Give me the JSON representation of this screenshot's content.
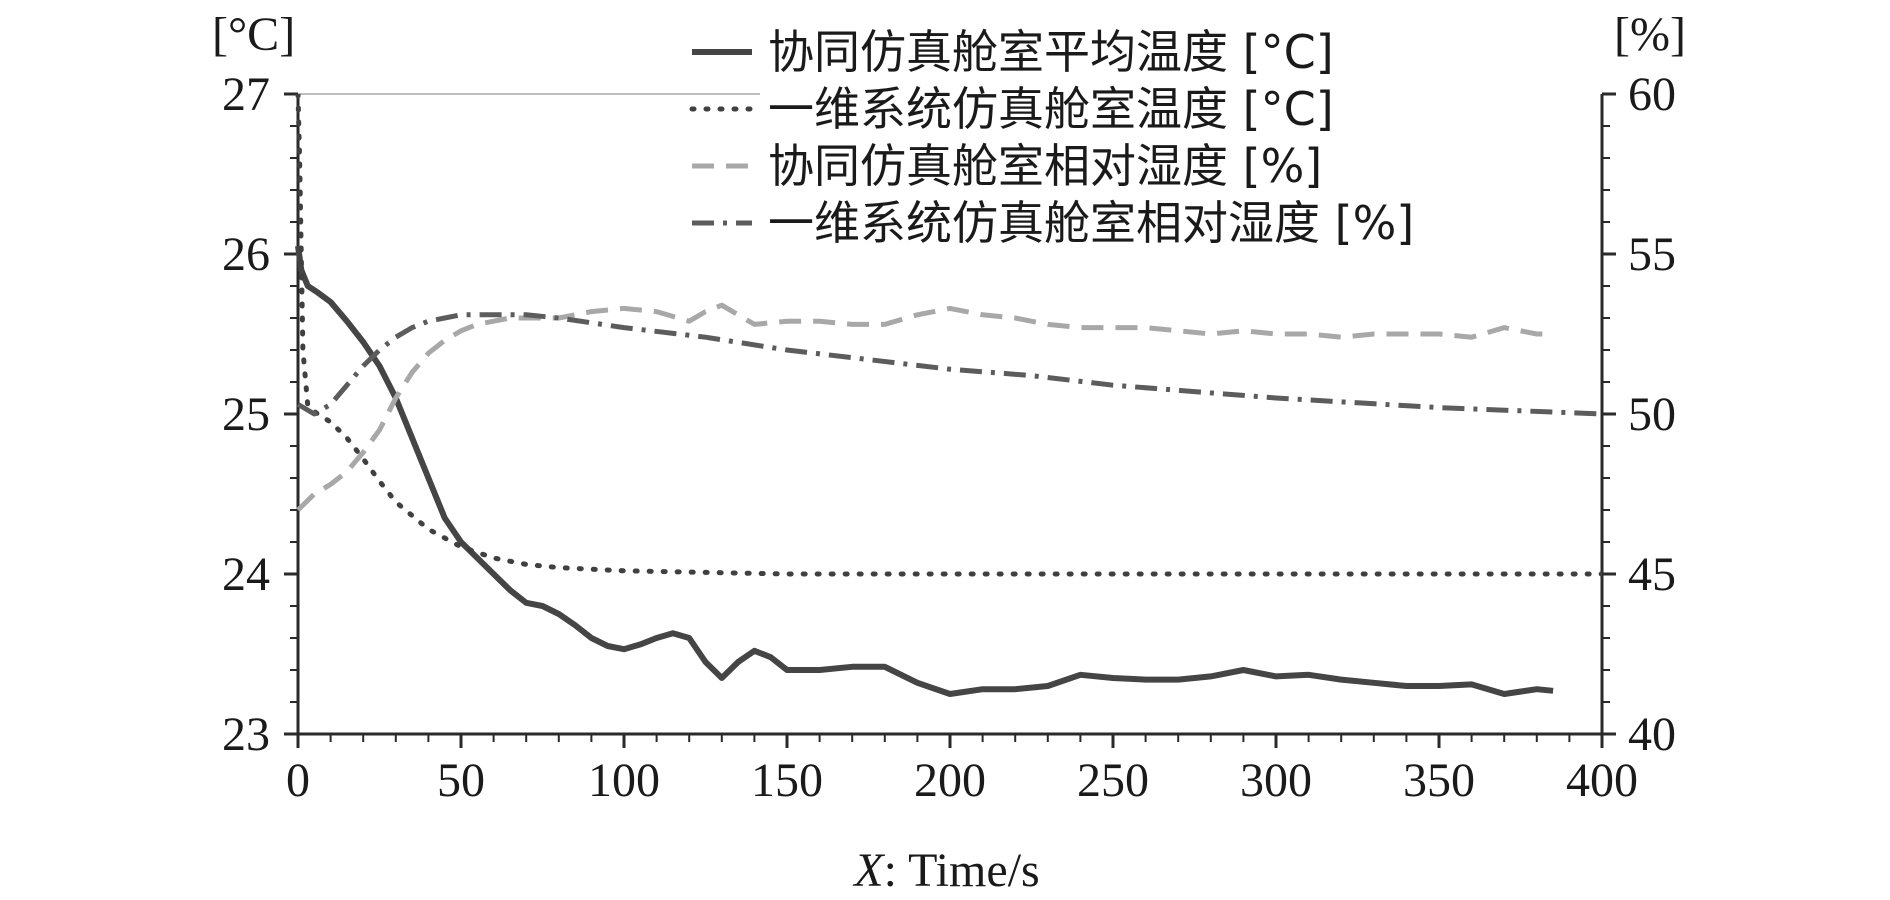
{
  "chart_data": {
    "type": "line",
    "xlabel_italic": "X",
    "xlabel_rest": ": Time/s",
    "y_left_unit": "[°C]",
    "y_right_unit": "[%]",
    "xlim": [
      0,
      400
    ],
    "ylim_left": [
      23,
      27
    ],
    "ylim_right": [
      40,
      60
    ],
    "x_ticks": [
      "0",
      "50",
      "100",
      "150",
      "200",
      "250",
      "300",
      "350",
      "400"
    ],
    "y_left_ticks": [
      "23",
      "24",
      "25",
      "26",
      "27"
    ],
    "y_right_ticks": [
      "40",
      "45",
      "50",
      "55",
      "60"
    ],
    "grid": false,
    "legend_position": "top-right",
    "series": [
      {
        "name": "协同仿真舱室平均温度 [°C]",
        "axis": "left",
        "style": "solid",
        "color": "#454545",
        "x": [
          0,
          1,
          3,
          6,
          10,
          15,
          20,
          25,
          30,
          35,
          40,
          45,
          50,
          55,
          60,
          65,
          70,
          75,
          80,
          85,
          90,
          95,
          100,
          105,
          110,
          115,
          120,
          125,
          130,
          135,
          140,
          145,
          150,
          160,
          170,
          180,
          190,
          200,
          210,
          220,
          230,
          240,
          250,
          260,
          270,
          280,
          290,
          300,
          310,
          320,
          330,
          340,
          350,
          360,
          370,
          380,
          385
        ],
        "values": [
          26.05,
          25.9,
          25.8,
          25.76,
          25.7,
          25.58,
          25.45,
          25.3,
          25.1,
          24.85,
          24.6,
          24.35,
          24.2,
          24.1,
          24.0,
          23.9,
          23.82,
          23.8,
          23.75,
          23.68,
          23.6,
          23.55,
          23.53,
          23.56,
          23.6,
          23.63,
          23.6,
          23.45,
          23.35,
          23.45,
          23.52,
          23.48,
          23.4,
          23.4,
          23.42,
          23.42,
          23.32,
          23.25,
          23.28,
          23.28,
          23.3,
          23.37,
          23.35,
          23.34,
          23.34,
          23.36,
          23.4,
          23.36,
          23.37,
          23.34,
          23.32,
          23.3,
          23.3,
          23.31,
          23.25,
          23.28,
          23.27
        ]
      },
      {
        "name": "一维系统仿真舱室温度 [°C]",
        "axis": "left",
        "style": "dotted",
        "color": "#404040",
        "x": [
          0,
          0.5,
          1.5,
          3,
          6,
          10,
          15,
          20,
          25,
          30,
          40,
          50,
          60,
          70,
          80,
          100,
          125,
          150,
          200,
          250,
          300,
          350,
          400
        ],
        "values": [
          27.0,
          26.6,
          25.4,
          25.05,
          25.0,
          24.95,
          24.85,
          24.72,
          24.58,
          24.45,
          24.28,
          24.17,
          24.1,
          24.06,
          24.04,
          24.02,
          24.01,
          24.0,
          24.0,
          24.0,
          24.0,
          24.0,
          24.0
        ]
      },
      {
        "name": "协同仿真舱室相对湿度 [%]",
        "axis": "right",
        "style": "dashed",
        "color": "#a8a8a8",
        "x": [
          0,
          5,
          10,
          15,
          20,
          25,
          30,
          35,
          40,
          45,
          50,
          55,
          60,
          65,
          70,
          80,
          90,
          100,
          110,
          120,
          125,
          130,
          140,
          150,
          160,
          170,
          180,
          190,
          200,
          210,
          220,
          230,
          240,
          250,
          260,
          270,
          280,
          290,
          300,
          310,
          320,
          330,
          340,
          350,
          360,
          370,
          380,
          385
        ],
        "values": [
          47.0,
          47.5,
          47.8,
          48.2,
          48.8,
          49.5,
          50.5,
          51.3,
          51.9,
          52.3,
          52.6,
          52.8,
          52.9,
          53.0,
          53.0,
          53.0,
          53.2,
          53.3,
          53.2,
          52.9,
          53.2,
          53.4,
          52.8,
          52.9,
          52.9,
          52.8,
          52.8,
          53.1,
          53.3,
          53.1,
          53.0,
          52.8,
          52.7,
          52.7,
          52.7,
          52.6,
          52.5,
          52.6,
          52.5,
          52.5,
          52.4,
          52.5,
          52.5,
          52.5,
          52.4,
          52.7,
          52.5,
          52.5
        ]
      },
      {
        "name": "一维系统仿真舱室相对湿度 [%]",
        "axis": "right",
        "style": "dashdot",
        "color": "#5c5c5c",
        "x": [
          0,
          5,
          10,
          15,
          20,
          25,
          30,
          35,
          40,
          45,
          50,
          55,
          60,
          65,
          70,
          80,
          100,
          125,
          150,
          175,
          200,
          225,
          250,
          275,
          300,
          325,
          350,
          375,
          400
        ],
        "values": [
          50.3,
          50.0,
          50.3,
          50.9,
          51.5,
          52.0,
          52.4,
          52.7,
          52.9,
          53.0,
          53.1,
          53.1,
          53.1,
          53.1,
          53.1,
          53.0,
          52.7,
          52.4,
          52.0,
          51.7,
          51.4,
          51.2,
          50.9,
          50.7,
          50.5,
          50.35,
          50.2,
          50.1,
          50.0
        ]
      }
    ]
  }
}
